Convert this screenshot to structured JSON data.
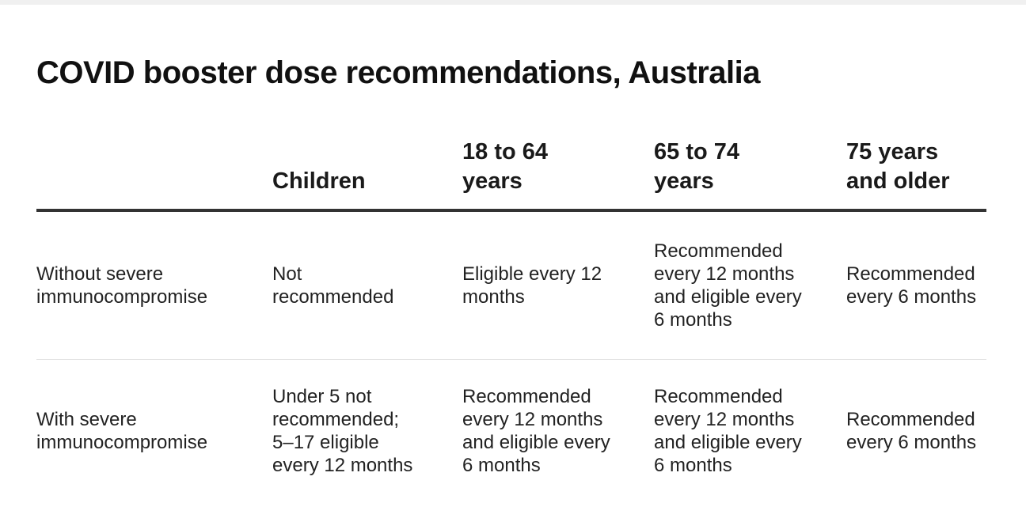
{
  "title": "COVID booster dose recommendations, Australia",
  "table": {
    "headers": [
      "",
      "Children",
      "18 to 64\nyears",
      "65 to 74\nyears",
      "75 years\nand older"
    ],
    "rows": [
      {
        "label": "Without severe immunocompromise",
        "cells": [
          "Not recommended",
          "Eligible every 12 months",
          "Recommended every 12 months and eligible every 6 months",
          "Recommended every 6 months"
        ]
      },
      {
        "label": "With severe immunocompromise",
        "cells": [
          "Under 5 not recommended; 5–17 eligible every 12 months",
          "Recommended every 12 months and eligible every 6 months",
          "Recommended every 12 months and eligible every 6 months",
          "Recommended every 6 months"
        ]
      }
    ]
  }
}
